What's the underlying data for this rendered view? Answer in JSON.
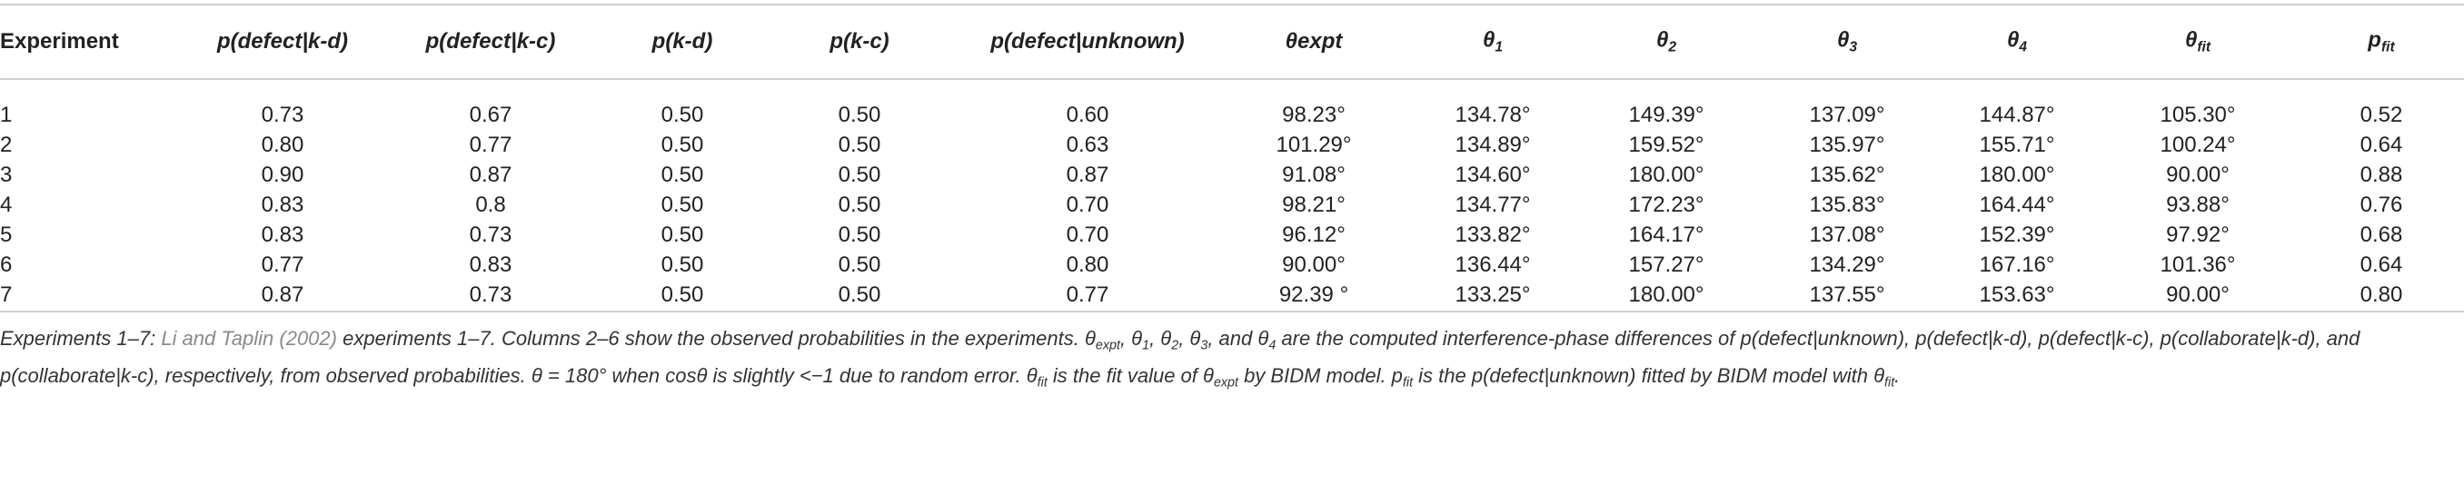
{
  "table": {
    "columns": [
      {
        "text": "Experiment"
      },
      {
        "text": "p(defect|k-d)"
      },
      {
        "text": "p(defect|k-c)"
      },
      {
        "text": "p(k-d)"
      },
      {
        "text": "p(k-c)"
      },
      {
        "text": "p(defect|unknown)"
      },
      {
        "text": "θexpt"
      },
      {
        "text": "θ",
        "sub": "1"
      },
      {
        "text": "θ",
        "sub": "2"
      },
      {
        "text": "θ",
        "sub": "3"
      },
      {
        "text": "θ",
        "sub": "4"
      },
      {
        "text": "θ",
        "sub": "fit"
      },
      {
        "text": "p",
        "sub": "fit"
      }
    ],
    "rows": [
      [
        "1",
        "0.73",
        "0.67",
        "0.50",
        "0.50",
        "0.60",
        "98.23°",
        "134.78°",
        "149.39°",
        "137.09°",
        "144.87°",
        "105.30°",
        "0.52"
      ],
      [
        "2",
        "0.80",
        "0.77",
        "0.50",
        "0.50",
        "0.63",
        "101.29°",
        "134.89°",
        "159.52°",
        "135.97°",
        "155.71°",
        "100.24°",
        "0.64"
      ],
      [
        "3",
        "0.90",
        "0.87",
        "0.50",
        "0.50",
        "0.87",
        "91.08°",
        "134.60°",
        "180.00°",
        "135.62°",
        "180.00°",
        "90.00°",
        "0.88"
      ],
      [
        "4",
        "0.83",
        "0.8",
        "0.50",
        "0.50",
        "0.70",
        "98.21°",
        "134.77°",
        "172.23°",
        "135.83°",
        "164.44°",
        "93.88°",
        "0.76"
      ],
      [
        "5",
        "0.83",
        "0.73",
        "0.50",
        "0.50",
        "0.70",
        "96.12°",
        "133.82°",
        "164.17°",
        "137.08°",
        "152.39°",
        "97.92°",
        "0.68"
      ],
      [
        "6",
        "0.77",
        "0.83",
        "0.50",
        "0.50",
        "0.80",
        "90.00°",
        "136.44°",
        "157.27°",
        "134.29°",
        "167.16°",
        "101.36°",
        "0.64"
      ],
      [
        "7",
        "0.87",
        "0.73",
        "0.50",
        "0.50",
        "0.77",
        "92.39 °",
        "133.25°",
        "180.00°",
        "137.55°",
        "153.63°",
        "90.00°",
        "0.80"
      ]
    ]
  },
  "caption": [
    {
      "text": "Experiments 1–7: "
    },
    {
      "text": "Li and Taplin (2002)",
      "style": "link"
    },
    {
      "text": " experiments 1–7. Columns 2–6 show the observed probabilities in the experiments. θ"
    },
    {
      "text": "expt",
      "style": "sub"
    },
    {
      "text": ", θ"
    },
    {
      "text": "1",
      "style": "sub"
    },
    {
      "text": ", θ"
    },
    {
      "text": "2",
      "style": "sub"
    },
    {
      "text": ", θ"
    },
    {
      "text": "3",
      "style": "sub"
    },
    {
      "text": ", and θ"
    },
    {
      "text": "4",
      "style": "sub"
    },
    {
      "text": " are the computed interference-phase differences of p(defect|unknown), p(defect|k-d), p(defect|k-c), p(collaborate|k-d), and p(collaborate|k-c), respectively, from observed probabilities. θ = 180° when cosθ is slightly <−1 due to random error. θ"
    },
    {
      "text": "fit",
      "style": "sub"
    },
    {
      "text": " is the fit value of θ"
    },
    {
      "text": "expt",
      "style": "sub"
    },
    {
      "text": " by BIDM model. p"
    },
    {
      "text": "fit",
      "style": "sub"
    },
    {
      "text": " is the p(defect|unknown) fitted by BIDM model with θ"
    },
    {
      "text": "fit",
      "style": "sub"
    },
    {
      "text": "."
    }
  ]
}
